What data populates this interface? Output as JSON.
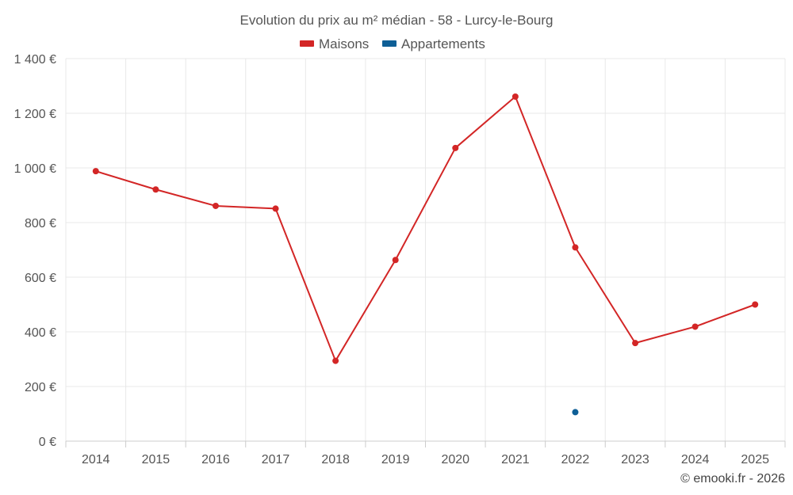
{
  "chart_data": {
    "type": "line",
    "title": "Evolution du prix au m² médian - 58 - Lurcy-le-Bourg",
    "xlabel": "",
    "ylabel": "",
    "categories": [
      "2014",
      "2015",
      "2016",
      "2017",
      "2018",
      "2019",
      "2020",
      "2021",
      "2022",
      "2023",
      "2024",
      "2025"
    ],
    "ylim": [
      0,
      1400
    ],
    "yticks": [
      0,
      200,
      400,
      600,
      800,
      1000,
      1200,
      1400
    ],
    "ytick_labels": [
      "0 €",
      "200 €",
      "400 €",
      "600 €",
      "800 €",
      "1 000 €",
      "1 200 €",
      "1 400 €"
    ],
    "grid": true,
    "legend_position": "top-center",
    "series": [
      {
        "name": "Maisons",
        "color": "#d32626",
        "values": [
          988,
          921,
          861,
          851,
          294,
          663,
          1073,
          1261,
          709,
          359,
          419,
          500
        ]
      },
      {
        "name": "Appartements",
        "color": "#0e5f96",
        "values": [
          null,
          null,
          null,
          null,
          null,
          null,
          null,
          null,
          106,
          null,
          null,
          null
        ]
      }
    ]
  },
  "credit": "© emooki.fr - 2026"
}
